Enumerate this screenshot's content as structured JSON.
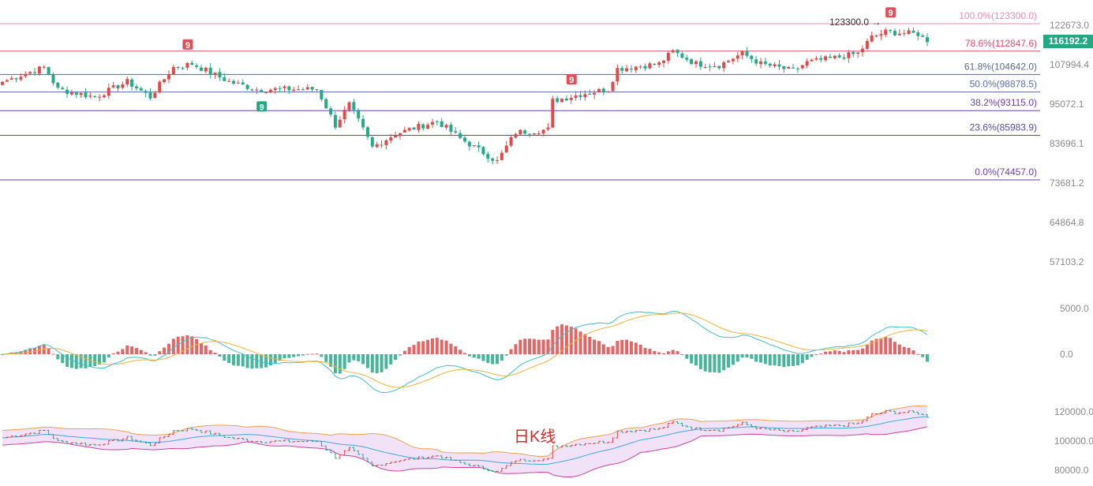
{
  "chart_data": {
    "type": "candlestick",
    "price_axis": {
      "scale": "log",
      "ticks": [
        122673.0,
        116192.2,
        107994.4,
        95072.1,
        83696.1,
        73681.2,
        64864.8,
        57103.2
      ]
    },
    "macd_axis": {
      "ticks": [
        5000.0,
        0.0
      ]
    },
    "boll_axis": {
      "ticks": [
        120000.0,
        100000.0,
        80000.0
      ]
    },
    "current_price": "116192.2",
    "high_label": "123300.0",
    "high_arrow": "→",
    "watermark": "日K线",
    "fib_levels": [
      {
        "label": "100.0%(123300.0)",
        "price": 123300.0,
        "color": "#e58fb5"
      },
      {
        "label": "78.6%(112847.6)",
        "price": 112847.6,
        "color": "#d9506e"
      },
      {
        "label": "61.8%(104642.0)",
        "price": 104642.0,
        "color": "#5a6b86"
      },
      {
        "label": "50.0%(98878.5)",
        "price": 98878.5,
        "color": "#5a6fa3"
      },
      {
        "label": "38.2%(93115.0)",
        "price": 93115.0,
        "color": "#6a3fb0"
      },
      {
        "label": "23.6%(85983.9)",
        "price": 85983.9,
        "color": "#5b4aa8"
      },
      {
        "label": "0.0%(74457.0)",
        "price": 74457.0,
        "color": "#6a3fb0"
      }
    ],
    "price_path": [
      [
        0,
        102200
      ],
      [
        9,
        107100
      ],
      [
        12,
        99760
      ],
      [
        20,
        97300
      ],
      [
        27,
        102200
      ],
      [
        32,
        97300
      ],
      [
        37,
        107100
      ],
      [
        41,
        108300
      ],
      [
        49,
        102200
      ],
      [
        55,
        99760
      ],
      [
        61,
        99760
      ],
      [
        68,
        99760
      ],
      [
        72,
        88800
      ],
      [
        75,
        94900
      ],
      [
        80,
        82700
      ],
      [
        85,
        86400
      ],
      [
        94,
        90000
      ],
      [
        99,
        85100
      ],
      [
        107,
        79000
      ],
      [
        111,
        86800
      ],
      [
        118,
        87600
      ],
      [
        119,
        96100
      ],
      [
        126,
        98500
      ],
      [
        131,
        99760
      ],
      [
        133,
        106600
      ],
      [
        142,
        108300
      ],
      [
        145,
        112700
      ],
      [
        150,
        108300
      ],
      [
        155,
        107800
      ],
      [
        160,
        112000
      ],
      [
        164,
        108300
      ],
      [
        171,
        105900
      ],
      [
        174,
        108800
      ],
      [
        181,
        110700
      ],
      [
        185,
        112000
      ],
      [
        188,
        118000
      ],
      [
        191,
        120000
      ],
      [
        198,
        119300
      ],
      [
        200,
        116192
      ]
    ],
    "td9_markers": [
      {
        "index": 40,
        "label": "9",
        "side": "sell"
      },
      {
        "index": 56,
        "label": "9",
        "side": "buy"
      },
      {
        "index": 123,
        "label": "9",
        "side": "sell"
      },
      {
        "index": 192,
        "label": "9",
        "side": "sell"
      }
    ],
    "colors": {
      "up": "#e04a4a",
      "down": "#26a889",
      "dif": "#3fc1c9",
      "dea": "#f0b43c",
      "boll_upper": "#f0a050",
      "boll_mid": "#3fa8e0",
      "boll_lower": "#d040a0",
      "boll_fill": "#f2e2f8"
    }
  }
}
